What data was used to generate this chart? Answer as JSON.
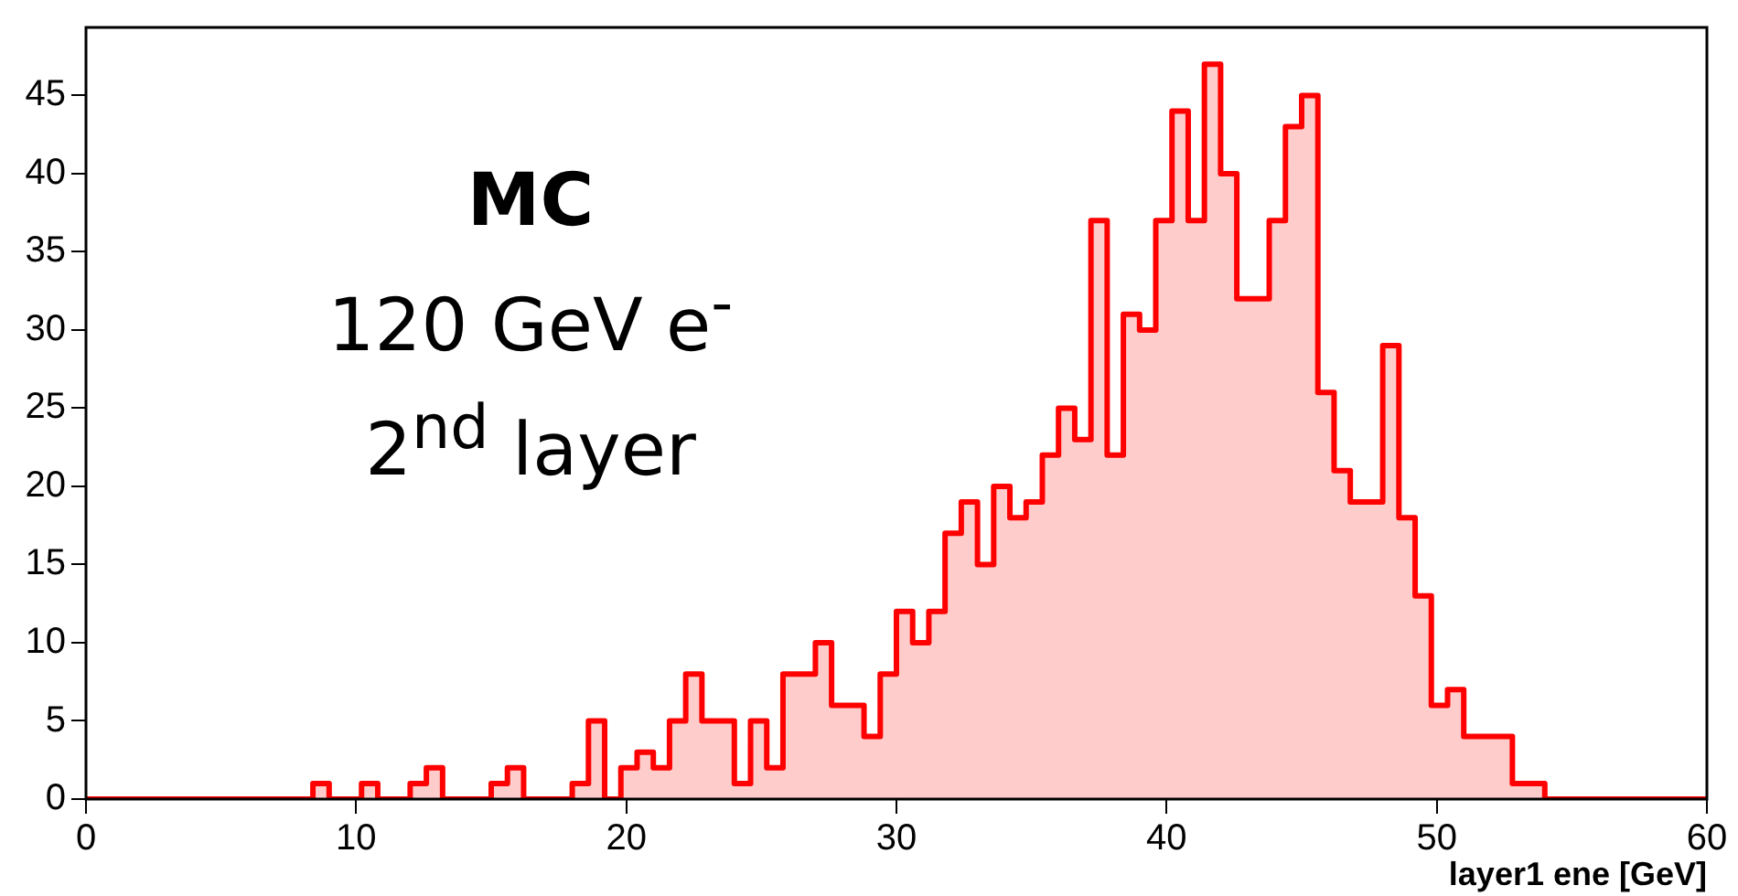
{
  "chart_data": {
    "type": "histogram",
    "bins": [
      0,
      0.6,
      1.2,
      1.8,
      2.4,
      3,
      3.6,
      4.2,
      4.8,
      5.4,
      6,
      6.6,
      7.2,
      7.8,
      8.4,
      9,
      9.6,
      10.2,
      10.8,
      11.4,
      12,
      12.6,
      13.2,
      13.8,
      14.4,
      15,
      15.6,
      16.2,
      16.8,
      17.4,
      18,
      18.6,
      19.2,
      19.8,
      20.4,
      21,
      21.6,
      22.2,
      22.8,
      23.4,
      24,
      24.6,
      25.2,
      25.8,
      26.4,
      27,
      27.6,
      28.2,
      28.8,
      29.4,
      30,
      30.6,
      31.2,
      31.8,
      32.4,
      33,
      33.6,
      34.2,
      34.8,
      35.4,
      36,
      36.6,
      37.2,
      37.8,
      38.4,
      39,
      39.6,
      40.2,
      40.8,
      41.4,
      42,
      42.6,
      43.2,
      43.8,
      44.4,
      45,
      45.6,
      46.2,
      46.8,
      47.4,
      48,
      48.6,
      49.2,
      49.8,
      50.4,
      51,
      51.6,
      52.2,
      52.8,
      53.4,
      54,
      54.6,
      55.2,
      55.8,
      56.4,
      57,
      57.6,
      58.2,
      58.8,
      59.4,
      60
    ],
    "values": [
      0,
      0,
      0,
      0,
      0,
      0,
      0,
      0,
      0,
      0,
      0,
      0,
      0,
      0,
      1,
      0,
      0,
      1,
      0,
      0,
      1,
      2,
      0,
      0,
      0,
      1,
      2,
      0,
      0,
      0,
      1,
      5,
      0,
      2,
      3,
      2,
      5,
      8,
      5,
      5,
      1,
      5,
      2,
      8,
      8,
      10,
      6,
      6,
      4,
      8,
      12,
      10,
      12,
      17,
      19,
      15,
      20,
      18,
      19,
      22,
      25,
      23,
      37,
      22,
      31,
      30,
      37,
      44,
      37,
      47,
      40,
      32,
      32,
      37,
      43,
      45,
      26,
      21,
      19,
      19,
      29,
      18,
      13,
      6,
      7,
      4,
      4,
      4,
      1,
      1,
      0,
      0,
      0,
      0,
      0,
      0,
      0,
      0,
      0,
      0
    ],
    "color": "#ff0000",
    "xlabel": "layer1 ene [GeV]",
    "xlim": [
      0,
      60
    ],
    "xticks": [
      0,
      10,
      20,
      30,
      40,
      50,
      60
    ],
    "ylim": [
      0,
      49.35
    ],
    "yticks": [
      0,
      5,
      10,
      15,
      20,
      25,
      30,
      35,
      40,
      45
    ],
    "grid": false,
    "annotations": [
      "MC",
      "120 GeV e$^{-}$",
      "2$^{nd}$ layer"
    ]
  }
}
